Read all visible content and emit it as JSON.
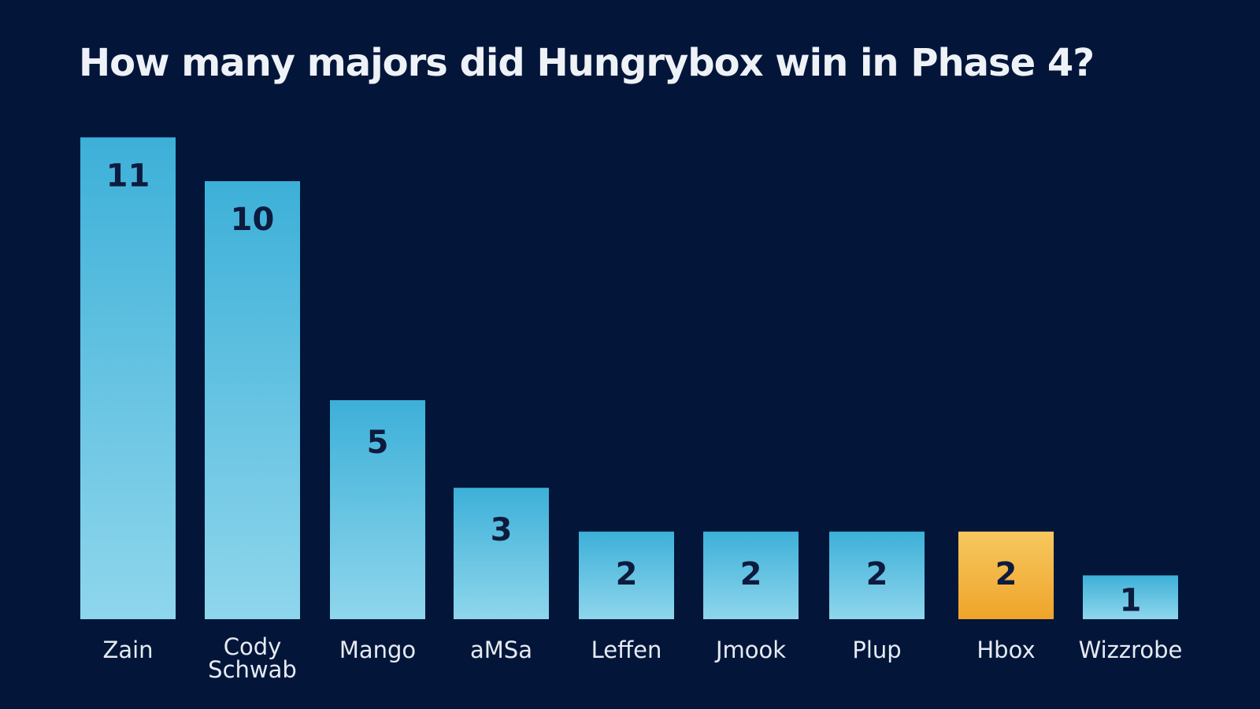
{
  "chart_data": {
    "type": "bar",
    "title": "How many majors did Hungrybox win in Phase 4?",
    "categories": [
      "Zain",
      "Cody Schwab",
      "Mango",
      "aMSa",
      "Leffen",
      "Jmook",
      "Plup",
      "Hbox",
      "Wizzrobe"
    ],
    "values": [
      11,
      10,
      5,
      3,
      2,
      2,
      2,
      2,
      1
    ],
    "highlight": "Hbox",
    "xlabel": "",
    "ylabel": "",
    "grid": false,
    "colors": {
      "background": "#03163a",
      "bar_top": "#3db0d8",
      "bar_bottom": "#8fd6ec",
      "highlight_top": "#f6c85f",
      "highlight_bottom": "#efa42a",
      "value_label": "#0d1b3e"
    }
  }
}
